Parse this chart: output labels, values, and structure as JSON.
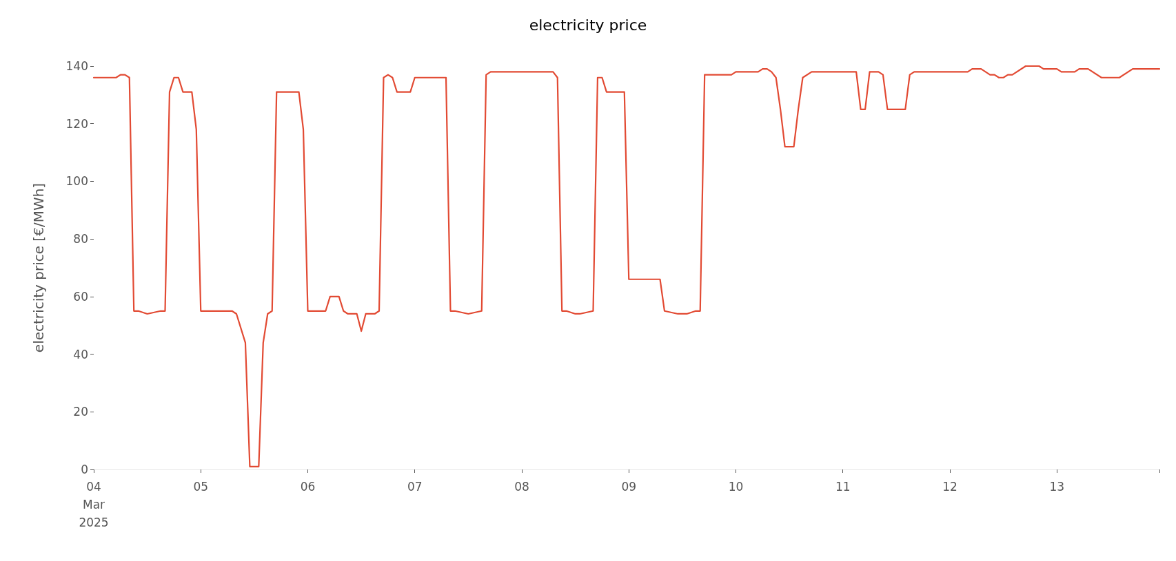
{
  "chart_data": {
    "type": "line",
    "title": "electricity price",
    "ylabel": "electricity price [€/MWh]",
    "x": [
      "2025-03-04T00:00",
      "2025-03-04T05:00",
      "2025-03-04T06:00",
      "2025-03-04T07:00",
      "2025-03-04T08:00",
      "2025-03-04T09:00",
      "2025-03-04T10:00",
      "2025-03-04T12:00",
      "2025-03-04T15:00",
      "2025-03-04T16:00",
      "2025-03-04T17:00",
      "2025-03-04T18:00",
      "2025-03-04T19:00",
      "2025-03-04T20:00",
      "2025-03-04T22:00",
      "2025-03-04T23:00",
      "2025-03-05T00:00",
      "2025-03-05T07:00",
      "2025-03-05T08:00",
      "2025-03-05T10:00",
      "2025-03-05T11:00",
      "2025-03-05T13:00",
      "2025-03-05T14:00",
      "2025-03-05T15:00",
      "2025-03-05T16:00",
      "2025-03-05T17:00",
      "2025-03-05T22:00",
      "2025-03-05T23:00",
      "2025-03-06T00:00",
      "2025-03-06T04:00",
      "2025-03-06T05:00",
      "2025-03-06T07:00",
      "2025-03-06T08:00",
      "2025-03-06T09:00",
      "2025-03-06T11:00",
      "2025-03-06T12:00",
      "2025-03-06T13:00",
      "2025-03-06T15:00",
      "2025-03-06T16:00",
      "2025-03-06T17:00",
      "2025-03-06T18:00",
      "2025-03-06T19:00",
      "2025-03-06T20:00",
      "2025-03-06T23:00",
      "2025-03-07T00:00",
      "2025-03-07T07:00",
      "2025-03-07T08:00",
      "2025-03-07T09:00",
      "2025-03-07T12:00",
      "2025-03-07T15:00",
      "2025-03-07T16:00",
      "2025-03-07T17:00",
      "2025-03-08T07:00",
      "2025-03-08T08:00",
      "2025-03-08T09:00",
      "2025-03-08T10:00",
      "2025-03-08T12:00",
      "2025-03-08T13:00",
      "2025-03-08T16:00",
      "2025-03-08T17:00",
      "2025-03-08T18:00",
      "2025-03-08T19:00",
      "2025-03-08T23:00",
      "2025-03-09T00:00",
      "2025-03-09T07:00",
      "2025-03-09T08:00",
      "2025-03-09T11:00",
      "2025-03-09T13:00",
      "2025-03-09T15:00",
      "2025-03-09T16:00",
      "2025-03-09T17:00",
      "2025-03-09T23:00",
      "2025-03-10T00:00",
      "2025-03-10T05:00",
      "2025-03-10T06:00",
      "2025-03-10T07:00",
      "2025-03-10T08:00",
      "2025-03-10T09:00",
      "2025-03-10T10:00",
      "2025-03-10T11:00",
      "2025-03-10T13:00",
      "2025-03-10T14:00",
      "2025-03-10T15:00",
      "2025-03-10T17:00",
      "2025-03-11T03:00",
      "2025-03-11T04:00",
      "2025-03-11T05:00",
      "2025-03-11T06:00",
      "2025-03-11T08:00",
      "2025-03-11T09:00",
      "2025-03-11T10:00",
      "2025-03-11T14:00",
      "2025-03-11T15:00",
      "2025-03-11T16:00",
      "2025-03-12T04:00",
      "2025-03-12T05:00",
      "2025-03-12T07:00",
      "2025-03-12T09:00",
      "2025-03-12T10:00",
      "2025-03-12T11:00",
      "2025-03-12T12:00",
      "2025-03-12T13:00",
      "2025-03-12T14:00",
      "2025-03-12T17:00",
      "2025-03-12T20:00",
      "2025-03-12T21:00",
      "2025-03-13T00:00",
      "2025-03-13T01:00",
      "2025-03-13T04:00",
      "2025-03-13T05:00",
      "2025-03-13T07:00",
      "2025-03-13T10:00",
      "2025-03-13T14:00",
      "2025-03-13T17:00",
      "2025-03-13T23:00"
    ],
    "series": [
      {
        "color": "#e24a33",
        "values": [
          136,
          136,
          137,
          137,
          136,
          55,
          55,
          54,
          55,
          55,
          131,
          136,
          136,
          131,
          131,
          118,
          55,
          55,
          54,
          44,
          1,
          1,
          44,
          54,
          55,
          131,
          131,
          118,
          55,
          55,
          60,
          60,
          55,
          54,
          54,
          48,
          54,
          54,
          55,
          136,
          137,
          136,
          131,
          131,
          136,
          136,
          55,
          55,
          54,
          55,
          137,
          138,
          138,
          136,
          55,
          55,
          54,
          54,
          55,
          136,
          136,
          131,
          131,
          66,
          66,
          55,
          54,
          54,
          55,
          55,
          137,
          137,
          138,
          138,
          139,
          139,
          138,
          136,
          125,
          112,
          112,
          125,
          136,
          138,
          138,
          125,
          125,
          138,
          138,
          137,
          125,
          125,
          137,
          138,
          138,
          139,
          139,
          137,
          137,
          136,
          136,
          137,
          137,
          140,
          140,
          139,
          139,
          138,
          138,
          139,
          139,
          136,
          136,
          139,
          139
        ]
      }
    ],
    "xticks": [
      {
        "value": "2025-03-04T00:00",
        "label": "04\nMar\n2025"
      },
      {
        "value": "2025-03-05T00:00",
        "label": "05"
      },
      {
        "value": "2025-03-06T00:00",
        "label": "06"
      },
      {
        "value": "2025-03-07T00:00",
        "label": "07"
      },
      {
        "value": "2025-03-08T00:00",
        "label": "08"
      },
      {
        "value": "2025-03-09T00:00",
        "label": "09"
      },
      {
        "value": "2025-03-10T00:00",
        "label": "10"
      },
      {
        "value": "2025-03-11T00:00",
        "label": "11"
      },
      {
        "value": "2025-03-12T00:00",
        "label": "12"
      },
      {
        "value": "2025-03-13T00:00",
        "label": "13"
      },
      {
        "value": "2025-03-13T23:00",
        "label": null
      }
    ],
    "xlim": [
      "2025-03-04T00:00",
      "2025-03-13T23:00"
    ],
    "ylim": [
      0,
      140
    ],
    "yticks": [
      0,
      20,
      40,
      60,
      80,
      100,
      120,
      140
    ],
    "marker": "none",
    "line_style": "solid"
  }
}
